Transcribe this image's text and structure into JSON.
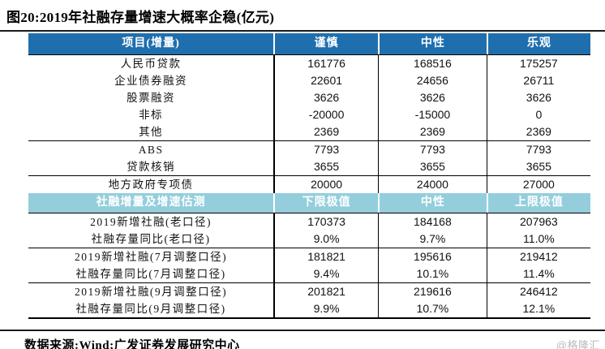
{
  "title": "图20:2019年社融存量增速大概率企稳(亿元)",
  "colors": {
    "header_dark_blue": "#1f6fae",
    "header_light_blue": "#94cedd",
    "border_black": "#000000",
    "watermark_gray": "#b9b9b9"
  },
  "chart_data": {
    "type": "table",
    "title": "图20:2019年社融存量增速大概率企稳(亿元)",
    "sections": [
      {
        "kind": "header",
        "variant": "dark",
        "cells": [
          "项目(增量)",
          "谨慎",
          "中性",
          "乐观"
        ]
      },
      {
        "kind": "group",
        "sep": true,
        "rows": [
          [
            "人民币贷款",
            "161776",
            "168516",
            "175257"
          ],
          [
            "企业债券融资",
            "22601",
            "24656",
            "26711"
          ],
          [
            "股票融资",
            "3626",
            "3626",
            "3626"
          ],
          [
            "非标",
            "-20000",
            "-15000",
            "0"
          ],
          [
            "其他",
            "2369",
            "2369",
            "2369"
          ]
        ]
      },
      {
        "kind": "group",
        "sep": true,
        "rows": [
          [
            "ABS",
            "7793",
            "7793",
            "7793"
          ],
          [
            "贷款核销",
            "3655",
            "3655",
            "3655"
          ]
        ]
      },
      {
        "kind": "group",
        "sep": false,
        "rows": [
          [
            "地方政府专项债",
            "20000",
            "24000",
            "27000"
          ]
        ]
      },
      {
        "kind": "header",
        "variant": "light",
        "cells": [
          "社融增量及增速估测",
          "下限极值",
          "中性",
          "上限极值"
        ]
      },
      {
        "kind": "group",
        "sep": true,
        "rows": [
          [
            "2019新增社融(老口径)",
            "170373",
            "184168",
            "207963"
          ],
          [
            "社融存量同比(老口径)",
            "9.0%",
            "9.7%",
            "11.0%"
          ]
        ]
      },
      {
        "kind": "group",
        "sep": true,
        "rows": [
          [
            "2019新增社融(7月调整口径)",
            "181821",
            "195616",
            "219412"
          ],
          [
            "社融存量同比(7月调整口径)",
            "9.4%",
            "10.1%",
            "11.4%"
          ]
        ]
      },
      {
        "kind": "group",
        "sep": false,
        "last": true,
        "rows": [
          [
            "2019新增社融(9月调整口径)",
            "201821",
            "219616",
            "246412"
          ],
          [
            "社融存量同比(9月调整口径)",
            "9.9%",
            "10.7%",
            "12.1%"
          ]
        ]
      }
    ]
  },
  "footer": {
    "source": "数据来源:Wind;广发证券发展研究中心",
    "watermark": "@格隆汇"
  }
}
